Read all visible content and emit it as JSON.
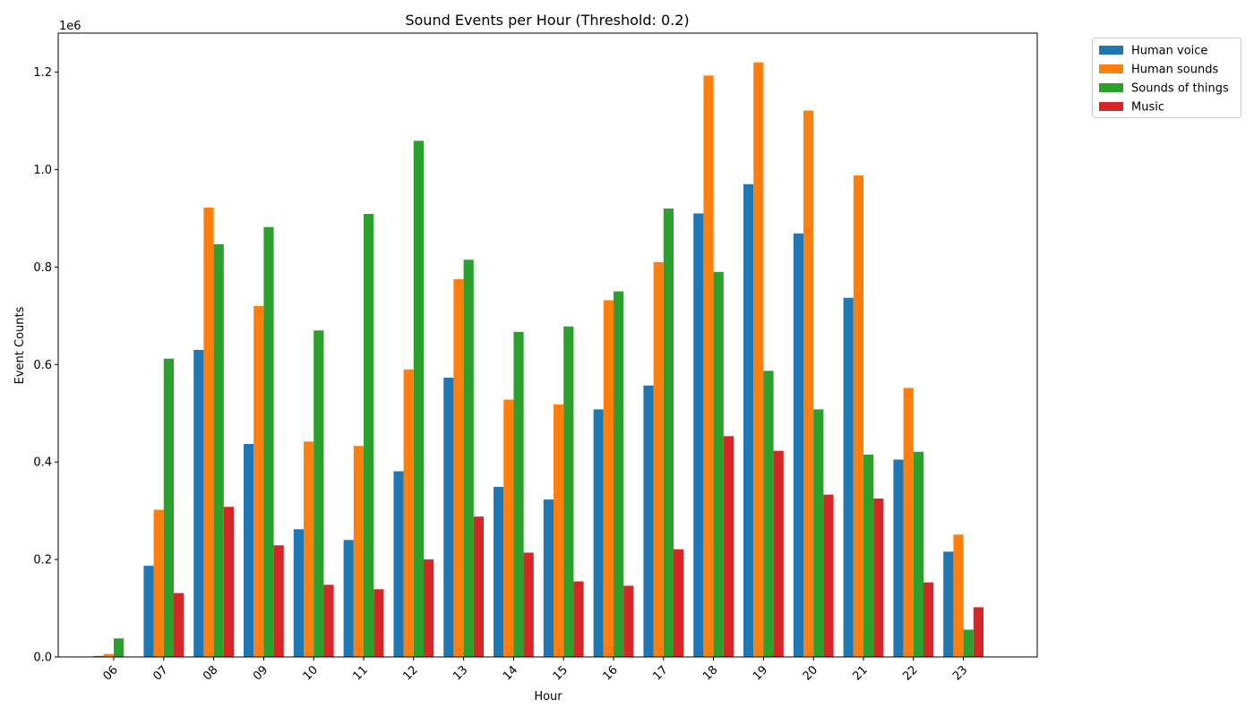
{
  "chart_data": {
    "type": "bar",
    "title": "Sound Events per Hour (Threshold: 0.2)",
    "xlabel": "Hour",
    "ylabel": "Event Counts",
    "offset_label": "1e6",
    "ylim": [
      0,
      1.28
    ],
    "yticks": [
      "0.0",
      "0.2",
      "0.4",
      "0.6",
      "0.8",
      "1.0",
      "1.2"
    ],
    "legend_position": "outside-top-right",
    "categories": [
      "06",
      "07",
      "08",
      "09",
      "10",
      "11",
      "12",
      "13",
      "14",
      "15",
      "16",
      "17",
      "18",
      "19",
      "20",
      "21",
      "22",
      "23"
    ],
    "series": [
      {
        "name": "Human voice",
        "color": "#1f77b4",
        "values": [
          0.002,
          0.187,
          0.63,
          0.437,
          0.262,
          0.24,
          0.381,
          0.573,
          0.349,
          0.323,
          0.508,
          0.557,
          0.91,
          0.97,
          0.869,
          0.737,
          0.405,
          0.216
        ]
      },
      {
        "name": "Human sounds",
        "color": "#ff7f0e",
        "values": [
          0.006,
          0.302,
          0.922,
          0.72,
          0.442,
          0.433,
          0.59,
          0.775,
          0.528,
          0.518,
          0.732,
          0.81,
          1.193,
          1.22,
          1.121,
          0.988,
          0.552,
          0.251
        ]
      },
      {
        "name": "Sounds of things",
        "color": "#2ca02c",
        "values": [
          0.038,
          0.612,
          0.847,
          0.882,
          0.67,
          0.909,
          1.059,
          0.815,
          0.667,
          0.678,
          0.75,
          0.92,
          0.79,
          0.587,
          0.508,
          0.415,
          0.421,
          0.056
        ]
      },
      {
        "name": "Music",
        "color": "#d62728",
        "values": [
          0.0,
          0.131,
          0.308,
          0.229,
          0.148,
          0.139,
          0.2,
          0.288,
          0.214,
          0.155,
          0.146,
          0.221,
          0.453,
          0.423,
          0.333,
          0.325,
          0.153,
          0.102
        ]
      }
    ]
  }
}
